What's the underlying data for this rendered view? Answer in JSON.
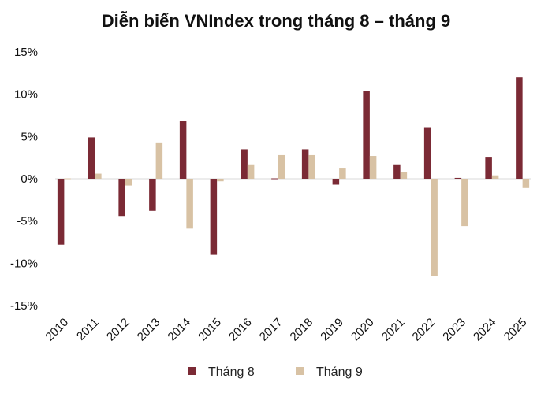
{
  "chart_data": {
    "type": "bar",
    "title": "Diễn biến VNIndex trong tháng 8 – tháng 9",
    "xlabel": "",
    "ylabel": "",
    "categories": [
      "2010",
      "2011",
      "2012",
      "2013",
      "2014",
      "2015",
      "2016",
      "2017",
      "2018",
      "2019",
      "2020",
      "2021",
      "2022",
      "2023",
      "2024",
      "2025"
    ],
    "series": [
      {
        "name": "Tháng 8",
        "color": "#7b2a35",
        "values": [
          -7.8,
          4.9,
          -4.4,
          -3.8,
          6.8,
          -9.0,
          3.5,
          0.0,
          3.5,
          -0.7,
          10.4,
          1.7,
          6.1,
          0.1,
          2.6,
          12.0
        ]
      },
      {
        "name": "Tháng 9",
        "color": "#d8c2a4",
        "values": [
          0.0,
          0.6,
          -0.8,
          4.3,
          -5.9,
          -0.3,
          1.7,
          2.8,
          2.8,
          1.3,
          2.7,
          0.8,
          -11.5,
          -5.6,
          0.4,
          -1.1
        ]
      }
    ],
    "ylim": [
      -15,
      15
    ],
    "yticks": [
      15,
      10,
      5,
      0,
      -5,
      -10,
      -15
    ],
    "ytick_labels": [
      "15%",
      "10%",
      "5%",
      "0%",
      "-5%",
      "-10%",
      "-15%"
    ],
    "grid": false,
    "legend_position": "bottom-center"
  }
}
